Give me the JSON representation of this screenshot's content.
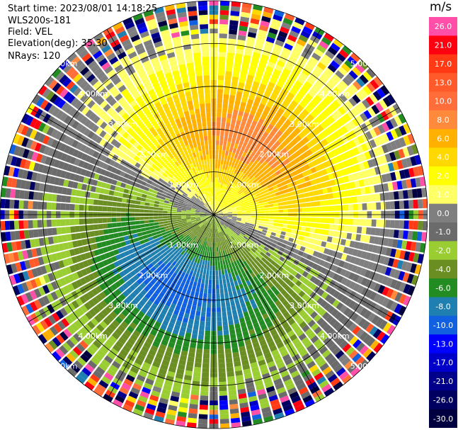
{
  "header": {
    "start_time": "Start time: 2023/08/01 14:18:25",
    "station": "WLS200s-181",
    "field": "Field: VEL",
    "elevation": "Elevation(deg): 35.30",
    "nrays": "NRays: 120"
  },
  "colorbar": {
    "unit": "m/s",
    "bins": [
      {
        "label": "26.0",
        "color": "#ff4fa8"
      },
      {
        "label": "21.0",
        "color": "#ff0010"
      },
      {
        "label": "17.0",
        "color": "#ff3a14"
      },
      {
        "label": "13.0",
        "color": "#ff5a2a"
      },
      {
        "label": "10.0",
        "color": "#ff6e3a"
      },
      {
        "label": "8.0",
        "color": "#ff8a3c"
      },
      {
        "label": "6.0",
        "color": "#ffb000"
      },
      {
        "label": "4.0",
        "color": "#ffd800"
      },
      {
        "label": "2.0",
        "color": "#ffff00"
      },
      {
        "label": "1.0",
        "color": "#ffff66"
      },
      {
        "label": "0.0",
        "color": "#7f7f7f"
      },
      {
        "label": "-1.0",
        "color": "#6b6b6b"
      },
      {
        "label": "-2.0",
        "color": "#9acd32"
      },
      {
        "label": "-4.0",
        "color": "#6b8e23"
      },
      {
        "label": "-6.0",
        "color": "#228b22"
      },
      {
        "label": "-8.0",
        "color": "#1e7fb0"
      },
      {
        "label": "-10.0",
        "color": "#1060e0"
      },
      {
        "label": "-13.0",
        "color": "#0000ff"
      },
      {
        "label": "-17.0",
        "color": "#0000c8"
      },
      {
        "label": "-21.0",
        "color": "#00008b"
      },
      {
        "label": "-26.0",
        "color": "#000060"
      },
      {
        "label": "-30.0",
        "color": "#000040"
      }
    ]
  },
  "chart_data": {
    "type": "heatmap",
    "projection": "polar-ppi",
    "field": "VEL",
    "units": "m/s",
    "n_rays": 120,
    "elevation_deg": 35.3,
    "max_range_km": 5.0,
    "range_rings_km": [
      1.0,
      2.0,
      3.0,
      4.0,
      5.0
    ],
    "range_labels": [
      "1.00km",
      "2.00km",
      "3.00km",
      "4.00km",
      "5.00km"
    ],
    "azimuth_lines_deg": [
      0,
      30,
      60,
      90,
      120,
      150,
      180,
      210,
      240,
      270,
      300,
      330
    ],
    "color_scale": {
      "vmin": -30.0,
      "vmax": 30.0
    },
    "pattern": {
      "description": "approximate velocity structure read from the image",
      "azimuth_of_max_deg": 25,
      "peak_velocity_ms": 9.0,
      "peak_range_km": 2.0,
      "near_field_ms": 1.0,
      "noise_begins_km": 4.2
    }
  }
}
